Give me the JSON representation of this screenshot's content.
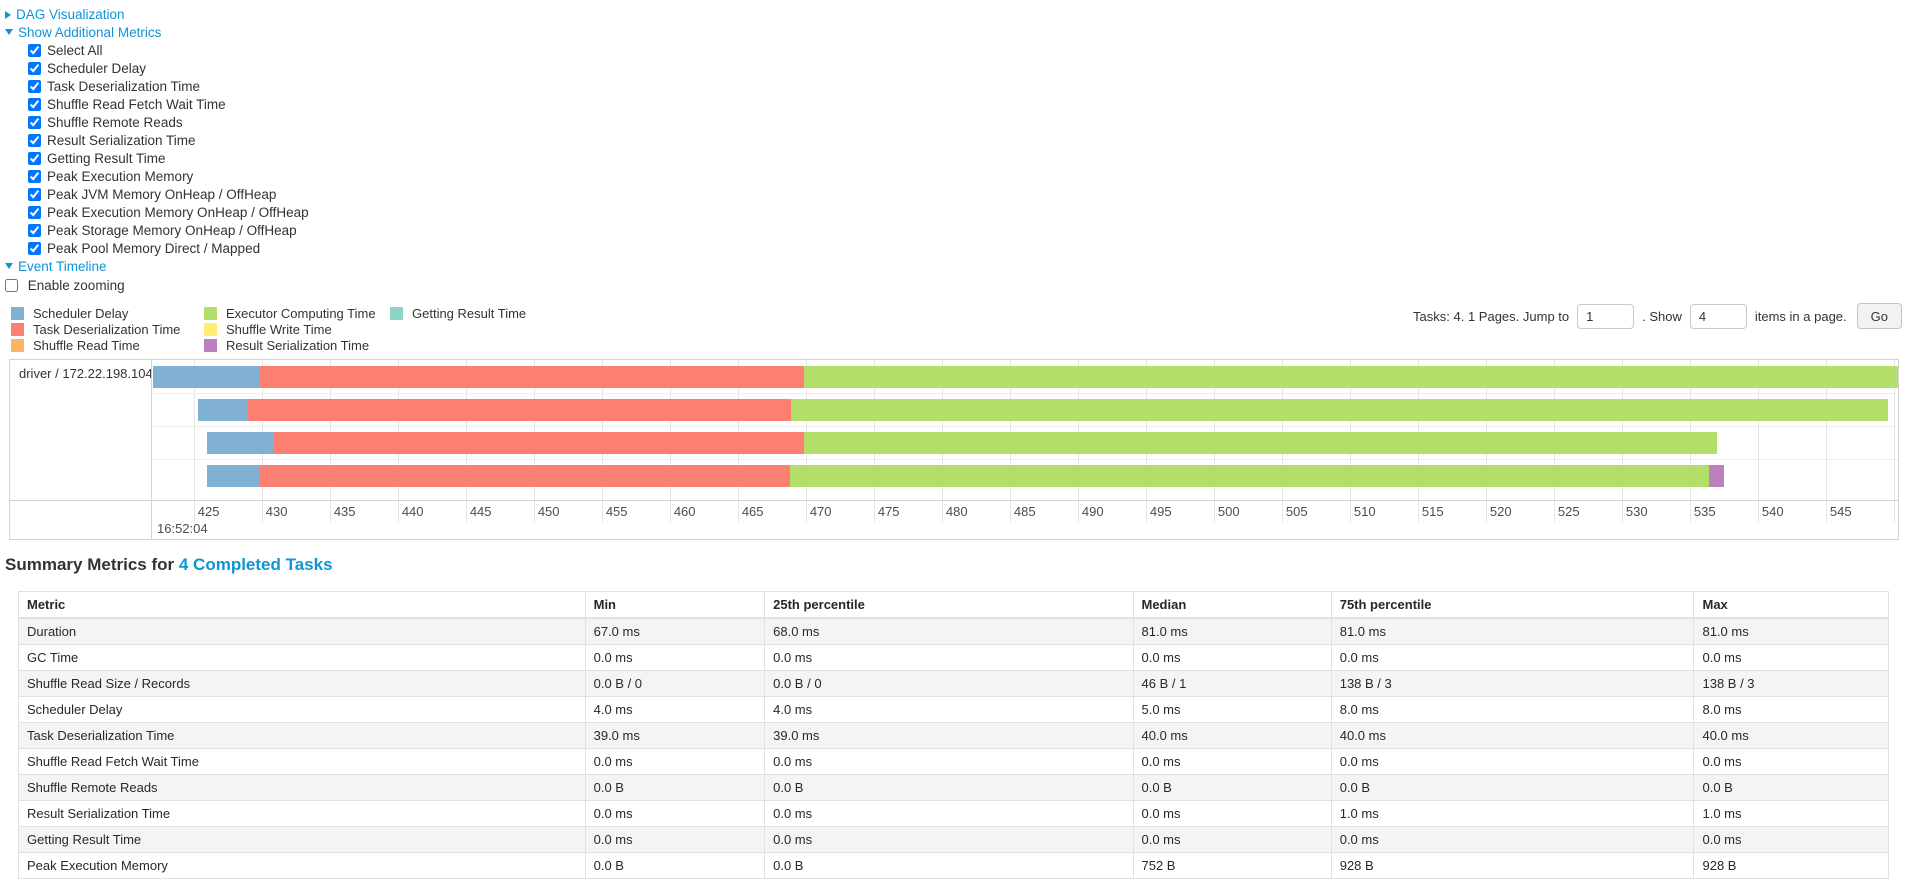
{
  "controls": {
    "dag": {
      "label": "DAG Visualization"
    },
    "metrics": {
      "label": "Show Additional Metrics",
      "items": [
        {
          "label": "Select All",
          "checked": true
        },
        {
          "label": "Scheduler Delay",
          "checked": true
        },
        {
          "label": "Task Deserialization Time",
          "checked": true
        },
        {
          "label": "Shuffle Read Fetch Wait Time",
          "checked": true
        },
        {
          "label": "Shuffle Remote Reads",
          "checked": true
        },
        {
          "label": "Result Serialization Time",
          "checked": true
        },
        {
          "label": "Getting Result Time",
          "checked": true
        },
        {
          "label": "Peak Execution Memory",
          "checked": true
        },
        {
          "label": "Peak JVM Memory OnHeap / OffHeap",
          "checked": true
        },
        {
          "label": "Peak Execution Memory OnHeap / OffHeap",
          "checked": true
        },
        {
          "label": "Peak Storage Memory OnHeap / OffHeap",
          "checked": true
        },
        {
          "label": "Peak Pool Memory Direct / Mapped",
          "checked": true
        }
      ]
    },
    "event_timeline": {
      "label": "Event Timeline"
    },
    "enable_zooming": {
      "label": "Enable zooming",
      "checked": false
    }
  },
  "pager": {
    "prefix": "Tasks: 4. 1 Pages. Jump to",
    "jump_value": "1",
    "mid": ". Show",
    "show_value": "4",
    "suffix": "items in a page.",
    "go_label": "Go"
  },
  "legend": {
    "columns": [
      [
        {
          "label": "Scheduler Delay",
          "color_key": "scheduler_delay"
        },
        {
          "label": "Task Deserialization Time",
          "color_key": "task_deserialization"
        },
        {
          "label": "Shuffle Read Time",
          "color_key": "shuffle_read"
        }
      ],
      [
        {
          "label": "Executor Computing Time",
          "color_key": "executor_computing"
        },
        {
          "label": "Shuffle Write Time",
          "color_key": "shuffle_write"
        },
        {
          "label": "Result Serialization Time",
          "color_key": "result_serialization"
        }
      ],
      [
        {
          "label": "Getting Result Time",
          "color_key": "getting_result"
        }
      ]
    ]
  },
  "chart_data": {
    "type": "timeline",
    "group_label": "driver / 172.22.198.104",
    "x_unit": "ms within second 16:52:04",
    "window": [
      422.0,
      550.3
    ],
    "tick_start": 425,
    "tick_end": 550,
    "tick_step": 5,
    "major_tick_label": "16:52:04",
    "colors": {
      "scheduler_delay": "#80B1D3",
      "task_deserialization": "#FB8072",
      "shuffle_read": "#FDB462",
      "executor_computing": "#B3DE69",
      "shuffle_write": "#FFED6F",
      "result_serialization": "#BC80BD",
      "getting_result": "#8DD3C7"
    },
    "tasks": [
      {
        "segments": [
          {
            "name": "scheduler_delay",
            "start": 422.0,
            "end": 429.9
          },
          {
            "name": "task_deserialization",
            "start": 429.9,
            "end": 469.9
          },
          {
            "name": "executor_computing",
            "start": 469.9,
            "end": 550.3
          }
        ]
      },
      {
        "segments": [
          {
            "name": "scheduler_delay",
            "start": 425.3,
            "end": 429.0
          },
          {
            "name": "task_deserialization",
            "start": 429.0,
            "end": 468.9
          },
          {
            "name": "executor_computing",
            "start": 468.9,
            "end": 549.6
          }
        ]
      },
      {
        "segments": [
          {
            "name": "scheduler_delay",
            "start": 426.0,
            "end": 430.9
          },
          {
            "name": "task_deserialization",
            "start": 430.9,
            "end": 469.9
          },
          {
            "name": "executor_computing",
            "start": 469.9,
            "end": 537.0
          }
        ]
      },
      {
        "segments": [
          {
            "name": "scheduler_delay",
            "start": 426.0,
            "end": 429.9
          },
          {
            "name": "task_deserialization",
            "start": 429.9,
            "end": 468.8
          },
          {
            "name": "executor_computing",
            "start": 468.8,
            "end": 536.4
          },
          {
            "name": "result_serialization",
            "start": 536.4,
            "end": 537.5
          }
        ]
      }
    ]
  },
  "summary": {
    "title_prefix": "Summary Metrics for",
    "title_link": "4 Completed Tasks",
    "table": {
      "headers": [
        "Metric",
        "Min",
        "25th percentile",
        "Median",
        "75th percentile",
        "Max"
      ],
      "rows": [
        [
          "Duration",
          "67.0 ms",
          "68.0 ms",
          "81.0 ms",
          "81.0 ms",
          "81.0 ms"
        ],
        [
          "GC Time",
          "0.0 ms",
          "0.0 ms",
          "0.0 ms",
          "0.0 ms",
          "0.0 ms"
        ],
        [
          "Shuffle Read Size / Records",
          "0.0 B / 0",
          "0.0 B / 0",
          "46 B / 1",
          "138 B / 3",
          "138 B / 3"
        ],
        [
          "Scheduler Delay",
          "4.0 ms",
          "4.0 ms",
          "5.0 ms",
          "8.0 ms",
          "8.0 ms"
        ],
        [
          "Task Deserialization Time",
          "39.0 ms",
          "39.0 ms",
          "40.0 ms",
          "40.0 ms",
          "40.0 ms"
        ],
        [
          "Shuffle Read Fetch Wait Time",
          "0.0 ms",
          "0.0 ms",
          "0.0 ms",
          "0.0 ms",
          "0.0 ms"
        ],
        [
          "Shuffle Remote Reads",
          "0.0 B",
          "0.0 B",
          "0.0 B",
          "0.0 B",
          "0.0 B"
        ],
        [
          "Result Serialization Time",
          "0.0 ms",
          "0.0 ms",
          "0.0 ms",
          "1.0 ms",
          "1.0 ms"
        ],
        [
          "Getting Result Time",
          "0.0 ms",
          "0.0 ms",
          "0.0 ms",
          "0.0 ms",
          "0.0 ms"
        ],
        [
          "Peak Execution Memory",
          "0.0 B",
          "0.0 B",
          "752 B",
          "928 B",
          "928 B"
        ]
      ]
    }
  }
}
